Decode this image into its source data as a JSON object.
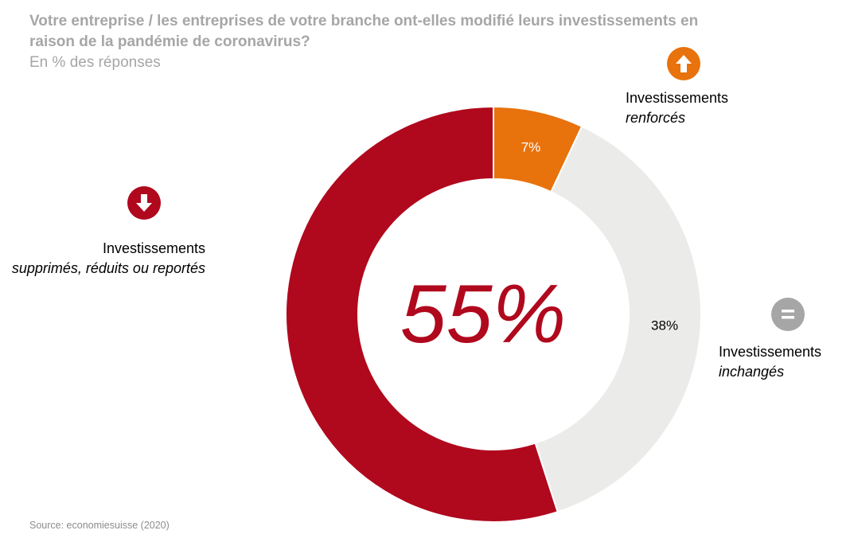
{
  "title": "Votre entreprise / les entreprises de votre branche ont-elles modifié leurs investissements en raison de la pandémie de coronavirus?",
  "subtitle": "En % des réponses",
  "source": "Source: economiesuisse (2020)",
  "center_value": "55%",
  "labels": {
    "reduced": {
      "main": "Investissements",
      "detail": "supprimés, réduits ou reportés"
    },
    "increased": {
      "main": "Investissements",
      "detail": "renforcés"
    },
    "unchanged": {
      "main": "Investissements",
      "detail": "inchangés"
    }
  },
  "icons": {
    "reduced": "arrow-down-icon",
    "increased": "arrow-up-icon",
    "unchanged": "equals-icon"
  },
  "chart_data": {
    "type": "pie",
    "variant": "donut",
    "title": "Votre entreprise / les entreprises de votre branche ont-elles modifié leurs investissements en raison de la pandémie de coronavirus?",
    "subtitle": "En % des réponses",
    "slices": [
      {
        "name": "Investissements renforcés",
        "value": 7,
        "label": "7%",
        "color": "#e8720c"
      },
      {
        "name": "Investissements inchangés",
        "value": 38,
        "label": "38%",
        "color": "#ebebea"
      },
      {
        "name": "Investissements supprimés, réduits ou reportés",
        "value": 55,
        "label": "55%",
        "color": "#b0081d"
      }
    ]
  }
}
